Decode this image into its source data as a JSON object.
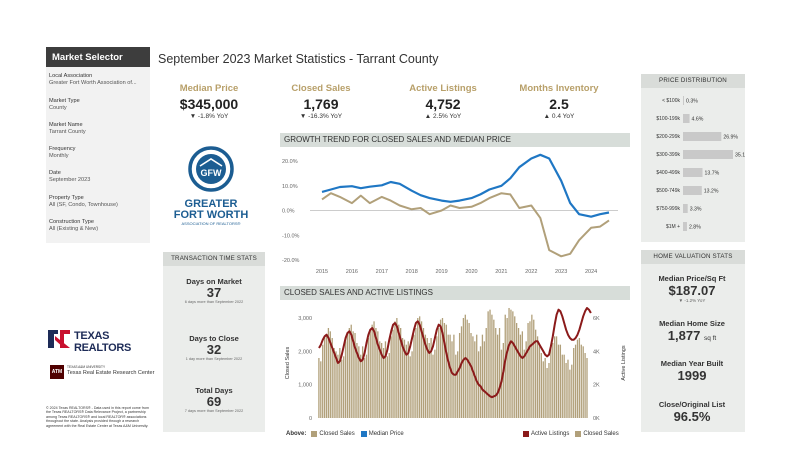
{
  "sidebar": {
    "title": "Market Selector",
    "fields": [
      {
        "label": "Local Association",
        "value": "Greater Fort Worth Association of..."
      },
      {
        "label": "Market Type",
        "value": "County"
      },
      {
        "label": "Market Name",
        "value": "Tarrant County"
      },
      {
        "label": "Frequency",
        "value": "Monthly"
      },
      {
        "label": "Date",
        "value": "September 2023"
      },
      {
        "label": "Property Type",
        "value": "All (SF, Condo, Townhouse)"
      },
      {
        "label": "Construction Type",
        "value": "All (Existing & New)"
      }
    ]
  },
  "header": {
    "title": "September 2023 Market Statistics - Tarrant County"
  },
  "kpis": [
    {
      "label": "Median Price",
      "value": "$345,000",
      "yoy": "▼ -1.8% YoY"
    },
    {
      "label": "Closed Sales",
      "value": "1,769",
      "yoy": "▼ -16.3% YoY"
    },
    {
      "label": "Active Listings",
      "value": "4,752",
      "yoy": "▲ 2.5% YoY"
    },
    {
      "label": "Months Inventory",
      "value": "2.5",
      "yoy": "▲ 0.4 YoY"
    }
  ],
  "logos": {
    "gfw_line1": "GREATER",
    "gfw_line2": "FORT WORTH",
    "gfw_line3": "ASSOCIATION OF REALTORS®",
    "gfw_emblem": "GFW",
    "texas_realtors": "TEXAS REALTORS",
    "tamu_line1": "TEXAS A&M UNIVERSITY",
    "tamu_line2": "Texas Real Estate Research Center"
  },
  "disclaimer": "© 2024 Texas REALTORS® - Data used in this report come from the Texas REALTORS® Data Relevance Project, a partnership among Texas REALTORS® and local REALTOR® associations throughout the state. Analysis provided through a research agreement with the Real Estate Center at Texas A&M University.",
  "transaction_time": {
    "title": "TRANSACTION TIME STATS",
    "items": [
      {
        "label": "Days on Market",
        "value": "37",
        "note": "6 days more than September 2022"
      },
      {
        "label": "Days to Close",
        "value": "32",
        "note": "1 day more than September 2022"
      },
      {
        "label": "Total Days",
        "value": "69",
        "note": "7 days more than September 2022"
      }
    ]
  },
  "home_valuation": {
    "title": "HOME VALUATION STATS",
    "items": [
      {
        "label": "Median Price/Sq Ft",
        "value": "$187.07",
        "unit": "",
        "note": "▼ -1.2% YoY"
      },
      {
        "label": "Median Home Size",
        "value": "1,877",
        "unit": "sq ft",
        "note": ""
      },
      {
        "label": "Median Year Built",
        "value": "1999",
        "unit": "",
        "note": ""
      },
      {
        "label": "Close/Original List",
        "value": "96.5%",
        "unit": "",
        "note": ""
      }
    ]
  },
  "colors": {
    "gold": "#b8a06a",
    "tan": "#b1a07a",
    "blue": "#1f77c4",
    "maroon": "#8b1a1a",
    "bar_gray": "#c9c9c9",
    "panel": "#ebedeb",
    "header_dark": "#3d3d3d",
    "gfw_blue": "#1c5d92",
    "texas_red": "#c8102e",
    "tamu_maroon": "#500000"
  },
  "chart_data": [
    {
      "id": "price_distribution",
      "type": "bar",
      "orientation": "horizontal",
      "title": "PRICE DISTRIBUTION",
      "categories": [
        "< $100k",
        "$100-199k",
        "$200-299k",
        "$300-399k",
        "$400-499k",
        "$500-749k",
        "$750-999k",
        "$1M +"
      ],
      "values": [
        0.3,
        4.6,
        26.9,
        35.1,
        13.7,
        13.2,
        3.3,
        2.8
      ],
      "value_labels": [
        "0.3%",
        "4.6%",
        "26.9%",
        "35.1%",
        "13.7%",
        "13.2%",
        "3.3%",
        "2.8%"
      ]
    },
    {
      "id": "growth_trend",
      "type": "line",
      "title": "GROWTH TREND FOR CLOSED SALES AND MEDIAN PRICE",
      "x_ticks": [
        "2015",
        "2016",
        "2017",
        "2018",
        "2019",
        "2020",
        "2021",
        "2022",
        "2023",
        "2024"
      ],
      "y_ticks": [
        "20.0%",
        "10.0%",
        "0.0%",
        "-10.0%",
        "-20.0%"
      ],
      "ylim": [
        -20,
        20
      ],
      "series": [
        {
          "name": "Median Price",
          "x": [
            2015.0,
            2015.3,
            2015.6,
            2016.0,
            2016.3,
            2016.6,
            2017.0,
            2017.3,
            2017.6,
            2018.0,
            2018.3,
            2018.6,
            2019.0,
            2019.3,
            2019.6,
            2020.0,
            2020.3,
            2020.6,
            2021.0,
            2021.3,
            2021.6,
            2022.0,
            2022.3,
            2022.6,
            2023.0,
            2023.3,
            2023.6,
            2024.0,
            2024.3,
            2024.6
          ],
          "values": [
            7.5,
            8.5,
            9.5,
            9.8,
            9.0,
            9.6,
            10.2,
            11.5,
            10.8,
            8.0,
            6.2,
            5.0,
            4.0,
            3.5,
            4.0,
            5.0,
            6.5,
            8.5,
            10.0,
            13.0,
            17.5,
            21.0,
            22.5,
            21.0,
            12.0,
            3.0,
            -1.5,
            -2.5,
            -1.5,
            -0.8
          ]
        },
        {
          "name": "Closed Sales",
          "x": [
            2015.0,
            2015.3,
            2015.6,
            2016.0,
            2016.3,
            2016.6,
            2017.0,
            2017.3,
            2017.6,
            2018.0,
            2018.3,
            2018.6,
            2019.0,
            2019.3,
            2019.6,
            2020.0,
            2020.3,
            2020.6,
            2021.0,
            2021.3,
            2021.6,
            2022.0,
            2022.3,
            2022.6,
            2023.0,
            2023.3,
            2023.6,
            2024.0,
            2024.3,
            2024.6
          ],
          "values": [
            4.5,
            7.0,
            5.5,
            3.0,
            6.0,
            3.0,
            5.5,
            4.0,
            2.0,
            0.5,
            1.0,
            -1.5,
            0.0,
            2.0,
            1.0,
            1.5,
            3.0,
            5.0,
            7.0,
            6.5,
            1.0,
            2.0,
            -3.0,
            -16.0,
            -18.5,
            -17.5,
            -12.0,
            -7.0,
            -6.5,
            -4.0
          ]
        }
      ]
    },
    {
      "id": "sales_listings",
      "type": "bar",
      "title": "CLOSED SALES AND ACTIVE LISTINGS",
      "x_ticks": [
        "2015",
        "2016",
        "2017",
        "2018",
        "2019",
        "2020",
        "2021",
        "2022",
        "2023",
        "2024"
      ],
      "y_ticks_left": [
        "3,000",
        "2,000",
        "1,000",
        "0"
      ],
      "y_ticks_right": [
        "6K",
        "4K",
        "2K",
        "0K"
      ],
      "ylabel_left": "Closed Sales",
      "ylabel_right": "Active Listings",
      "ylim_left": [
        0,
        3300
      ],
      "ylim_right": [
        0,
        6600
      ],
      "series": [
        {
          "name": "Closed Sales",
          "type": "bar",
          "values": [
            1800,
            1700,
            2200,
            2400,
            2500,
            2700,
            2600,
            2400,
            2100,
            2000,
            1900,
            2100,
            1750,
            1850,
            2300,
            2500,
            2700,
            2800,
            2600,
            2550,
            2250,
            2150,
            1900,
            2150,
            1800,
            1900,
            2400,
            2600,
            2800,
            2900,
            2700,
            2600,
            2300,
            2250,
            2100,
            2300,
            1850,
            1950,
            2450,
            2650,
            2900,
            3000,
            2800,
            2700,
            2400,
            2350,
            2200,
            2300,
            1850,
            2000,
            2500,
            2700,
            3000,
            3050,
            2900,
            2700,
            2500,
            2400,
            2250,
            2400,
            1900,
            2050,
            2450,
            2700,
            2950,
            3000,
            2850,
            2800,
            2500,
            2500,
            2300,
            2500,
            1900,
            2000,
            2550,
            2750,
            3000,
            3100,
            2950,
            2850,
            2550,
            2450,
            2300,
            2500,
            2000,
            2150,
            2500,
            2300,
            2700,
            3200,
            3250,
            3100,
            2950,
            2700,
            2500,
            2700,
            2050,
            2250,
            3100,
            3000,
            3300,
            3250,
            3200,
            3050,
            2850,
            2700,
            2500,
            2600,
            2050,
            2300,
            2850,
            2900,
            3100,
            2950,
            2650,
            2450,
            2150,
            1950,
            1700,
            1800,
            1500,
            1650,
            2200,
            2250,
            2450,
            2450,
            2200,
            2200,
            1900,
            1900,
            1650,
            1750,
            1450,
            1600,
            2100,
            2200,
            2350,
            2400,
            2200,
            2150,
            1950,
            1800
          ]
        },
        {
          "name": "Active Listings",
          "type": "line",
          "values": [
            4200,
            4400,
            4700,
            4900,
            5000,
            4800,
            4500,
            4200,
            3900,
            3600,
            3300,
            3400,
            3800,
            4300,
            4800,
            5100,
            5200,
            5000,
            4600,
            4200,
            3900,
            3600,
            3400,
            3500,
            3900,
            4500,
            5000,
            5300,
            5400,
            5200,
            4800,
            4400,
            4100,
            3800,
            3600,
            3700,
            4100,
            4700,
            5200,
            5600,
            5700,
            5500,
            5100,
            4700,
            4300,
            4000,
            3800,
            3900,
            4300,
            4800,
            5300,
            5700,
            5800,
            5600,
            5200,
            4800,
            4400,
            4100,
            3900,
            4000,
            4300,
            4800,
            5300,
            5600,
            5500,
            5100,
            4500,
            3900,
            3400,
            3000,
            2700,
            2600,
            2600,
            2800,
            3000,
            3300,
            3500,
            3600,
            3500,
            3300,
            3100,
            2800,
            2500,
            2200,
            2000,
            1900,
            1700,
            1600,
            1500,
            1400,
            1300,
            1250,
            1300,
            1350,
            1500,
            1800,
            2200,
            2800,
            3500,
            4000,
            4400,
            4600,
            4500,
            4300,
            4100,
            3900,
            3700,
            3600,
            3700,
            3900,
            4100,
            4300,
            4400,
            4500,
            4600,
            4600,
            4400,
            4200,
            4000,
            3800,
            3700,
            3800,
            4300,
            4900,
            5600,
            6200,
            6500,
            6400,
            6100,
            5700,
            5300,
            5000,
            4800,
            4700,
            4700,
            4800,
            5000,
            5300,
            5700,
            6100,
            6400,
            6600,
            6500,
            6300
          ]
        }
      ],
      "legend": {
        "prefix": "Above:",
        "left": [
          "Closed Sales",
          "Median Price"
        ],
        "right": [
          "Active Listings",
          "Closed Sales"
        ]
      }
    }
  ]
}
